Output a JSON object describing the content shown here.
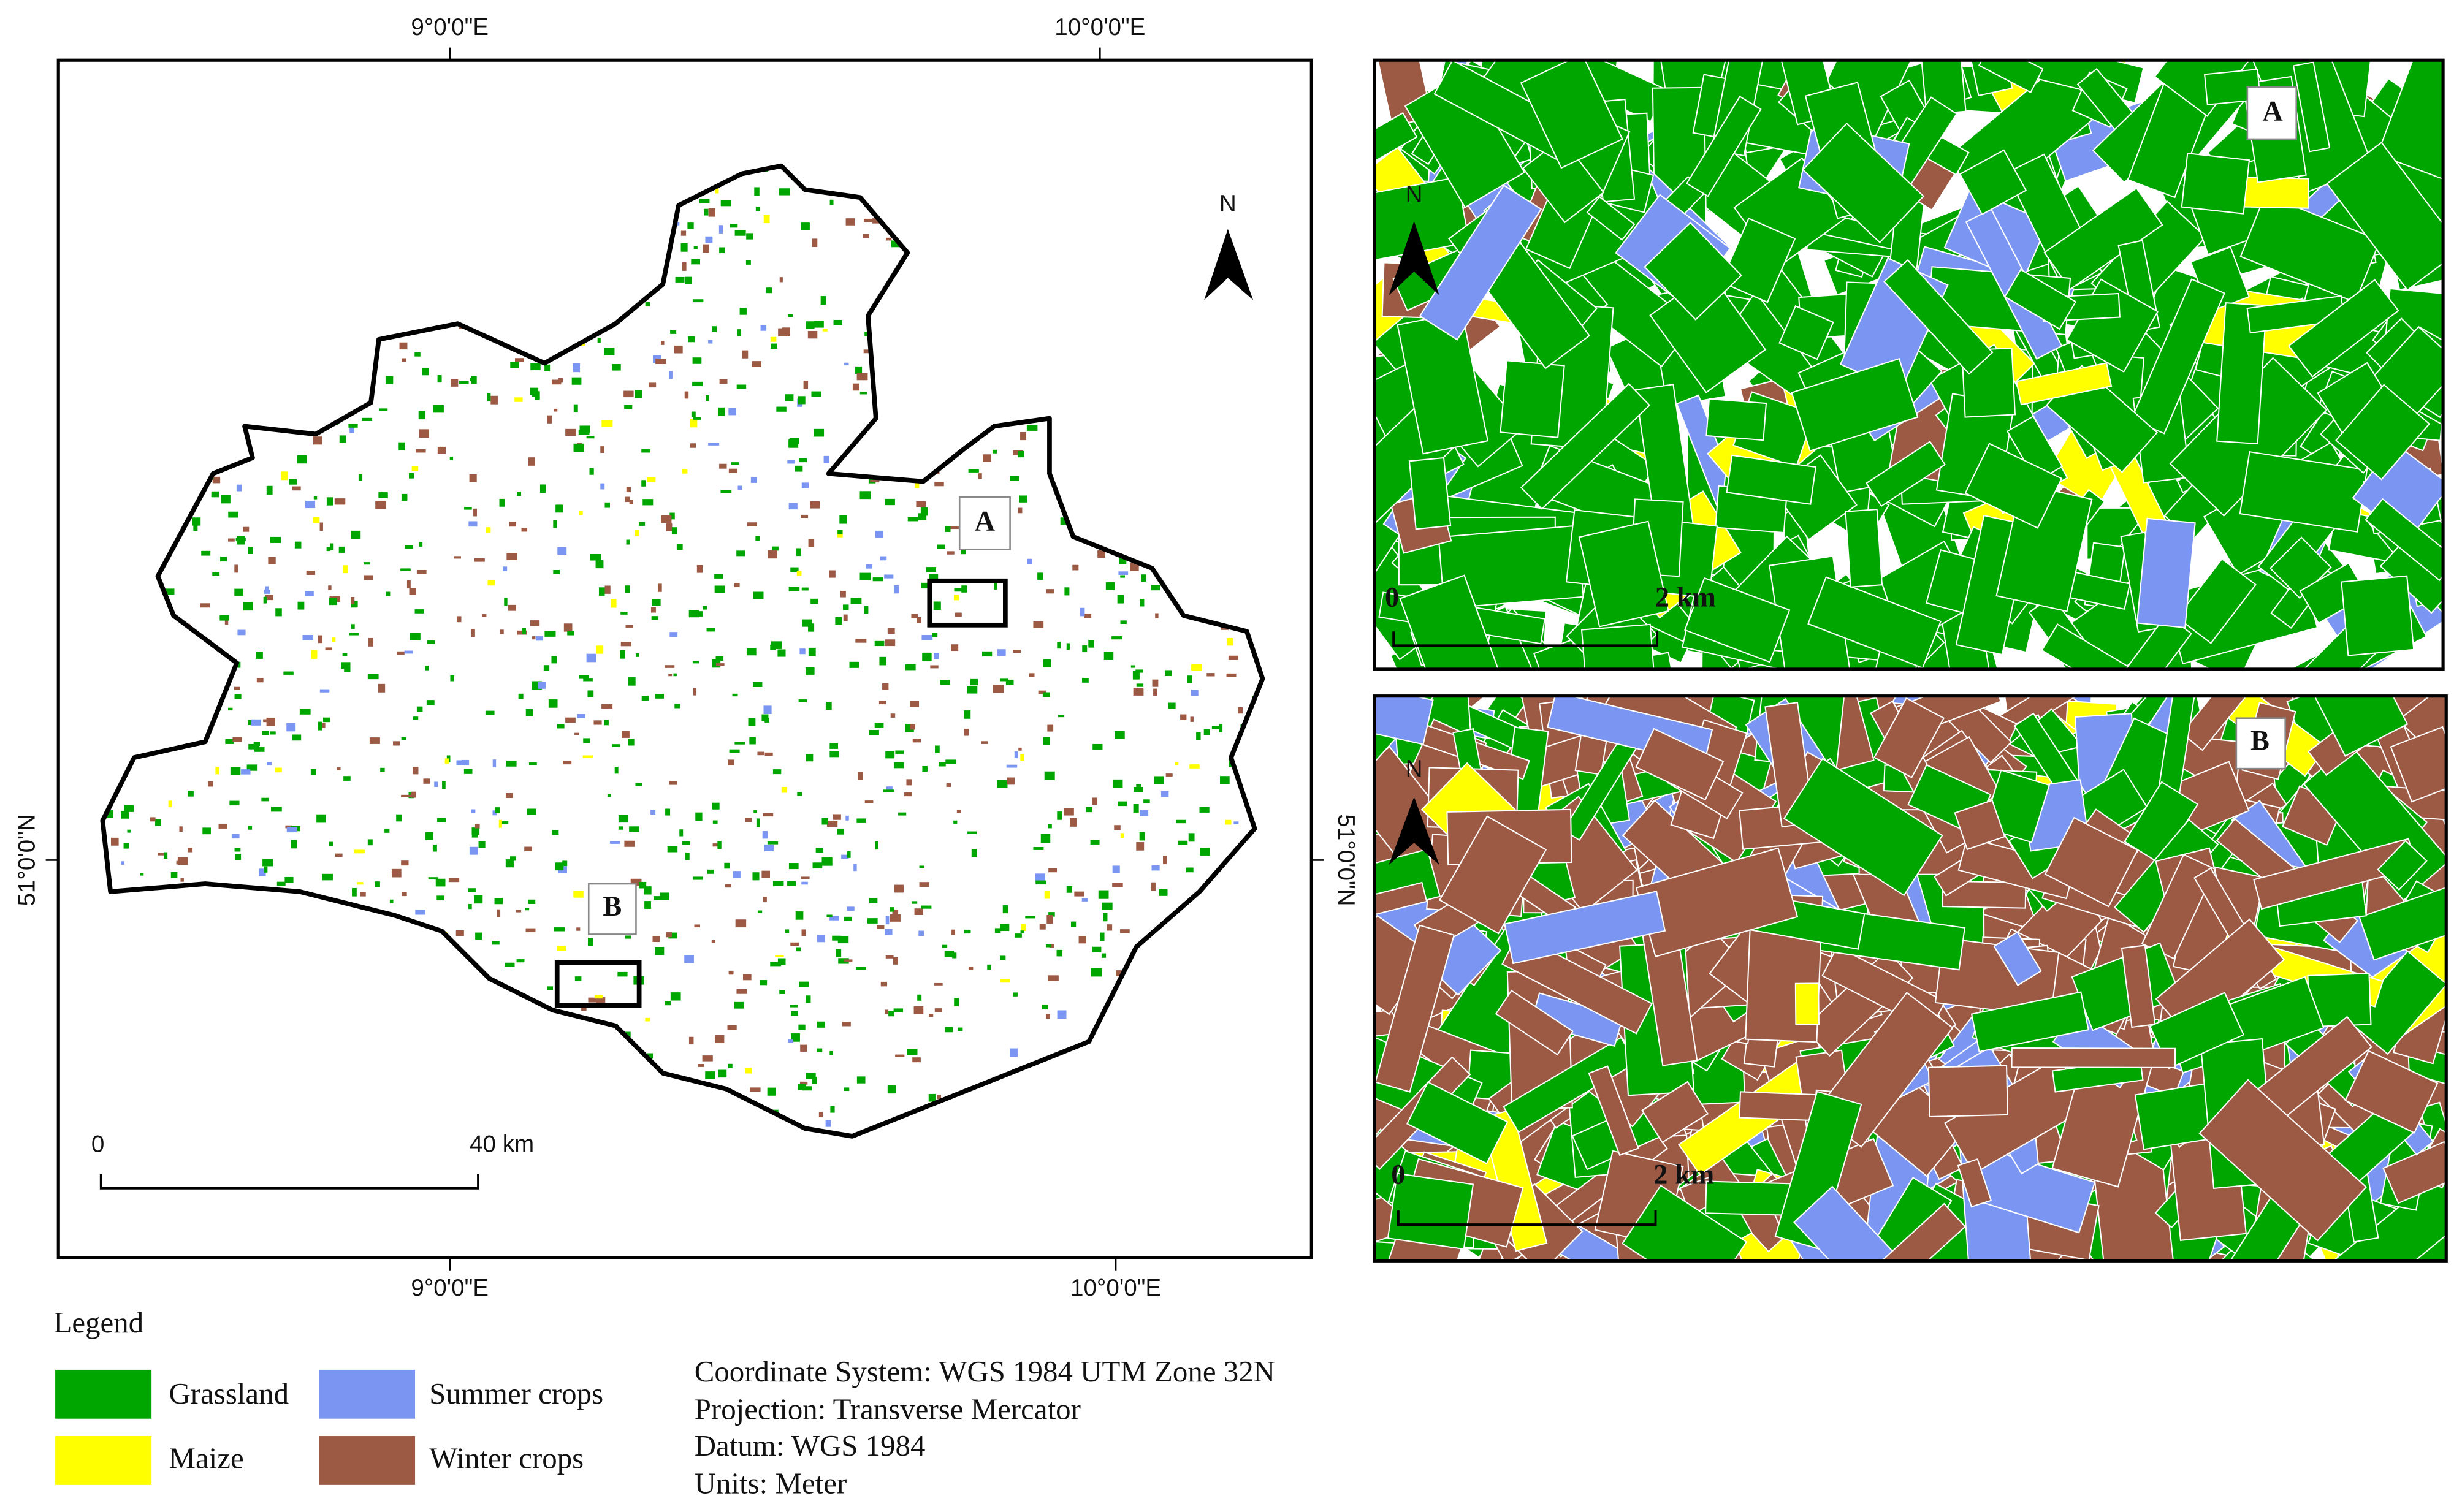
{
  "main_map": {
    "graticule": {
      "top": [
        "9°0'0\"E",
        "10°0'0\"E"
      ],
      "bottom": [
        "9°0'0\"E",
        "10°0'0\"E"
      ],
      "left": [
        "51°0'0\"N"
      ],
      "right": [
        "51°0'0\"N"
      ]
    },
    "north_label": "N",
    "box_labels": [
      "A",
      "B"
    ],
    "scale_bar": {
      "start": "0",
      "end": "40 km"
    }
  },
  "inset_a": {
    "label": "A",
    "north_label": "N",
    "scale_bar": {
      "start": "0",
      "end": "2 km"
    }
  },
  "inset_b": {
    "label": "B",
    "north_label": "N",
    "scale_bar": {
      "start": "0",
      "end": "2 km"
    }
  },
  "legend": {
    "title": "Legend",
    "items": [
      {
        "label": "Grassland",
        "color": "#00a600"
      },
      {
        "label": "Maize",
        "color": "#ffff00"
      },
      {
        "label": "Summer crops",
        "color": "#7b96f2"
      },
      {
        "label": "Winter crops",
        "color": "#9c5a44"
      }
    ]
  },
  "projection_info": [
    "Coordinate System: WGS 1984 UTM Zone 32N",
    "Projection: Transverse Mercator",
    "Datum: WGS 1984",
    "Units: Meter"
  ]
}
